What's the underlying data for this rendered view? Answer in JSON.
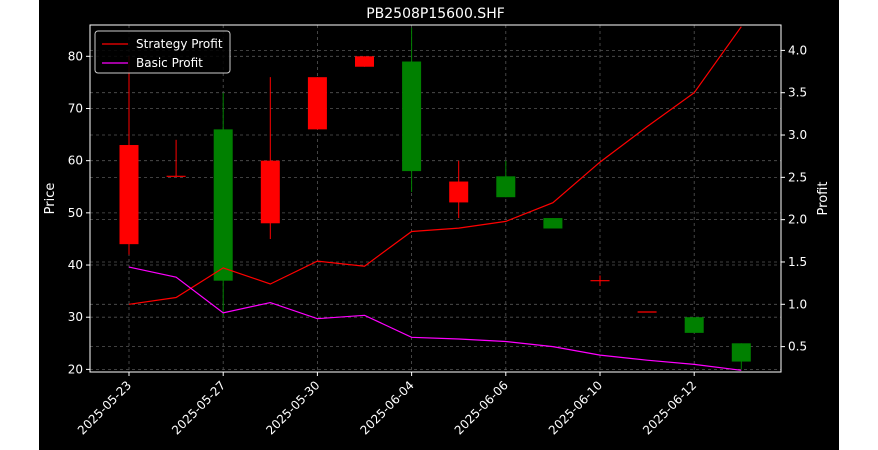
{
  "chart_data": {
    "type": "candlestick",
    "title": "PB2508P15600.SHF",
    "xlabel": "",
    "ylabel": "Price",
    "y2label": "Profit",
    "ylim": [
      19.5,
      86
    ],
    "y2lim": [
      0.2,
      4.3
    ],
    "yticks": [
      20,
      30,
      40,
      50,
      60,
      70,
      80
    ],
    "y2ticks": [
      0.5,
      1.0,
      1.5,
      2.0,
      2.5,
      3.0,
      3.5,
      4.0
    ],
    "y2tick_labels": [
      "0.5",
      "1.0",
      "1.5",
      "2.0",
      "2.5",
      "3.0",
      "3.5",
      "4.0"
    ],
    "xtick_labels": [
      "2025-05-23",
      "2025-05-27",
      "2025-05-30",
      "2025-06-04",
      "2025-06-06",
      "2025-06-10",
      "2025-06-12"
    ],
    "xtick_positions": [
      0,
      2,
      4,
      6,
      8,
      10,
      12
    ],
    "grid": true,
    "legend_position": "top-left",
    "colors": {
      "up": "#ff0000",
      "down": "#008000",
      "strategy": "#ff0000",
      "basic": "#ff00ff",
      "background": "#000000",
      "grid": "#555555"
    },
    "candles": [
      {
        "i": 0,
        "open": 44,
        "close": 63,
        "high": 80,
        "low": 42,
        "color": "up"
      },
      {
        "i": 1,
        "open": 57,
        "close": 57,
        "high": 64,
        "low": 57,
        "color": "up"
      },
      {
        "i": 2,
        "open": 66,
        "close": 37,
        "high": 73,
        "low": 30,
        "color": "down"
      },
      {
        "i": 3,
        "open": 48,
        "close": 60,
        "high": 76,
        "low": 45,
        "color": "up"
      },
      {
        "i": 4,
        "open": 66,
        "close": 76,
        "high": 76,
        "low": 66,
        "color": "up"
      },
      {
        "i": 5,
        "open": 78,
        "close": 80,
        "high": 80,
        "low": 78,
        "color": "up"
      },
      {
        "i": 6,
        "open": 79,
        "close": 58,
        "high": 85.5,
        "low": 54,
        "color": "down"
      },
      {
        "i": 7,
        "open": 52,
        "close": 56,
        "high": 60,
        "low": 49,
        "color": "up"
      },
      {
        "i": 8,
        "open": 57,
        "close": 53,
        "high": 60,
        "low": 53,
        "color": "down"
      },
      {
        "i": 9,
        "open": 49,
        "close": 47,
        "high": 49,
        "low": 47,
        "color": "down"
      },
      {
        "i": 10,
        "open": 37,
        "close": 37,
        "high": 38,
        "low": 36,
        "color": "up"
      },
      {
        "i": 11,
        "open": 31,
        "close": 31,
        "high": 31,
        "low": 31,
        "color": "up"
      },
      {
        "i": 12,
        "open": 30,
        "close": 27,
        "high": 30,
        "low": 27,
        "color": "down"
      },
      {
        "i": 13,
        "open": 25,
        "close": 21.5,
        "high": 25,
        "low": 20,
        "color": "down"
      }
    ],
    "series": [
      {
        "name": "Strategy Profit",
        "color": "#ff0000",
        "values": [
          1.0,
          1.08,
          1.43,
          1.24,
          1.51,
          1.45,
          1.86,
          1.9,
          1.98,
          2.2,
          2.68,
          3.1,
          3.5,
          4.28
        ]
      },
      {
        "name": "Basic Profit",
        "color": "#ff00ff",
        "values": [
          1.44,
          1.32,
          0.9,
          1.02,
          0.83,
          0.87,
          0.61,
          0.59,
          0.56,
          0.5,
          0.4,
          0.34,
          0.29,
          0.22
        ]
      }
    ]
  }
}
